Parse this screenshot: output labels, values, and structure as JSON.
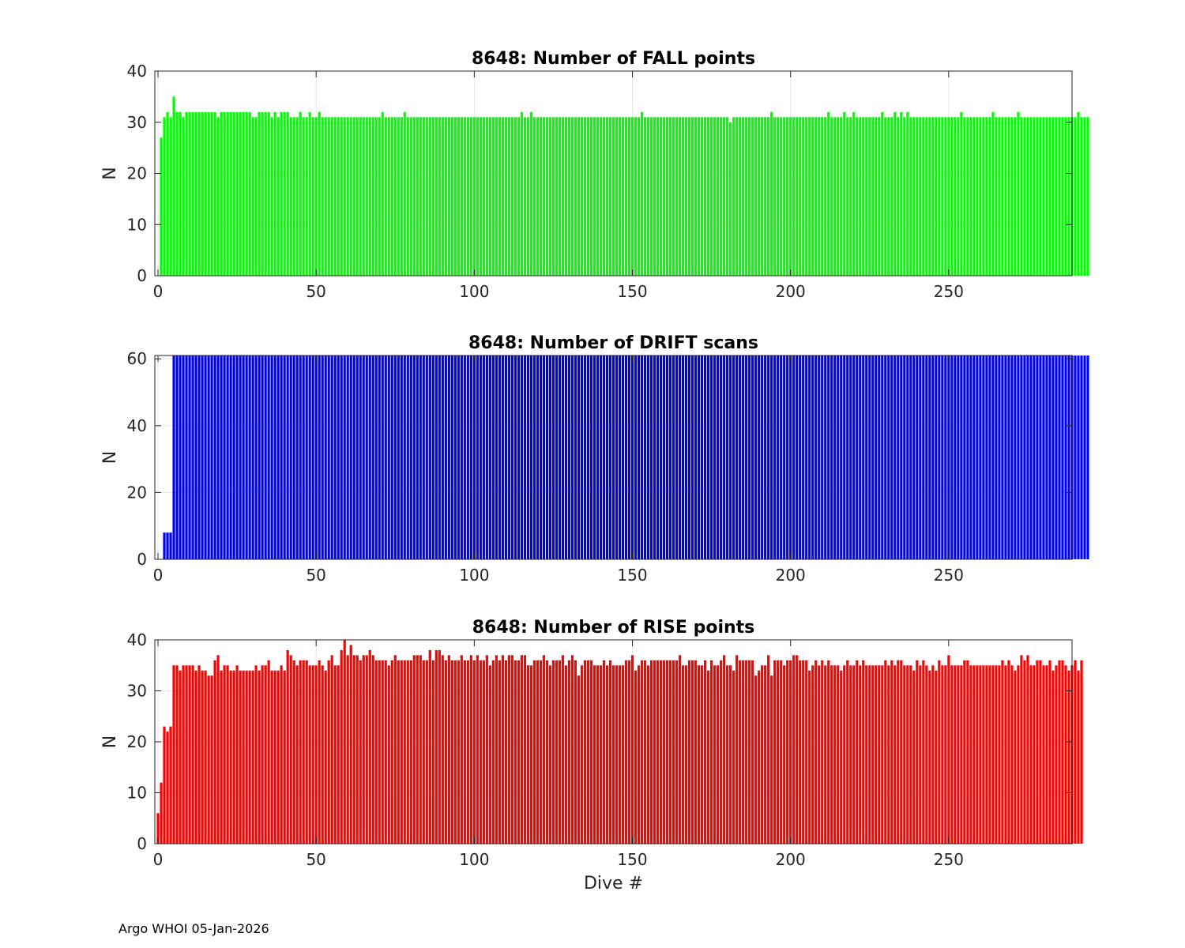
{
  "footer": {
    "text": "Argo WHOI 05-Jan-2026"
  },
  "chart_data": [
    {
      "type": "bar",
      "title": "8648: Number of FALL points",
      "xlabel": "",
      "ylabel": "N",
      "xlim": [
        -1,
        289
      ],
      "ylim": [
        0,
        40
      ],
      "xticks": [
        0,
        50,
        100,
        150,
        200,
        250
      ],
      "yticks": [
        0,
        10,
        20,
        30,
        40
      ],
      "grid": true,
      "color": "#00ff00",
      "series": [
        {
          "x_start": 1,
          "values": [
            27,
            31,
            32,
            31,
            35,
            32,
            32,
            31,
            32,
            32,
            32,
            32,
            32,
            32,
            32,
            32,
            32,
            32,
            31,
            32,
            32,
            32,
            32,
            32,
            32,
            32,
            32,
            32,
            32,
            31,
            31,
            32,
            32,
            32,
            32,
            31,
            32,
            31,
            32,
            32,
            32,
            31,
            31,
            31,
            32,
            31,
            31,
            32,
            31,
            31,
            32,
            31,
            31,
            31,
            31,
            31,
            31,
            31,
            31,
            31,
            31,
            31,
            31,
            31,
            31,
            31,
            31,
            31,
            31,
            31,
            32,
            31,
            31,
            31,
            31,
            31,
            31,
            32,
            31,
            31,
            31,
            31,
            31,
            31,
            31,
            31,
            31,
            31,
            31,
            31,
            31,
            31,
            31,
            31,
            31,
            31,
            31,
            31,
            31,
            31,
            31,
            31,
            31,
            31,
            31,
            31,
            31,
            31,
            31,
            31,
            31,
            31,
            31,
            31,
            32,
            31,
            31,
            32,
            31,
            31,
            31,
            31,
            31,
            31,
            31,
            31,
            31,
            31,
            31,
            31,
            31,
            31,
            31,
            31,
            31,
            31,
            31,
            31,
            31,
            31,
            31,
            31,
            31,
            31,
            31,
            31,
            31,
            31,
            31,
            31,
            31,
            31,
            32,
            31,
            31,
            31,
            31,
            31,
            31,
            31,
            31,
            31,
            31,
            31,
            31,
            31,
            31,
            31,
            31,
            31,
            31,
            31,
            31,
            31,
            31,
            31,
            31,
            31,
            31,
            31,
            30,
            31,
            31,
            31,
            31,
            31,
            31,
            31,
            31,
            31,
            31,
            31,
            31,
            32,
            31,
            31,
            31,
            31,
            31,
            31,
            31,
            31,
            31,
            31,
            31,
            31,
            31,
            31,
            31,
            31,
            31,
            32,
            31,
            31,
            31,
            31,
            32,
            31,
            31,
            32,
            31,
            31,
            31,
            31,
            31,
            31,
            31,
            31,
            32,
            31,
            31,
            31,
            32,
            31,
            32,
            31,
            32,
            31,
            31,
            31,
            31,
            31,
            31,
            31,
            31,
            31,
            31,
            31,
            31,
            31,
            31,
            31,
            31,
            32,
            31,
            31,
            31,
            31,
            31,
            31,
            31,
            31,
            31,
            32,
            31,
            31,
            31,
            31,
            31,
            31,
            31,
            32,
            31,
            31,
            31,
            31,
            31,
            31,
            31,
            31,
            31,
            31,
            31,
            31,
            31,
            31,
            31,
            31,
            31,
            31,
            32,
            31,
            31,
            31
          ]
        }
      ]
    },
    {
      "type": "bar",
      "title": "8648: Number of DRIFT scans",
      "xlabel": "",
      "ylabel": "N",
      "xlim": [
        -1,
        289
      ],
      "ylim": [
        0,
        61
      ],
      "xticks": [
        0,
        50,
        100,
        150,
        200,
        250
      ],
      "yticks": [
        0,
        20,
        40,
        60
      ],
      "grid": true,
      "color": "#0000ff",
      "series": [
        {
          "x_start": 1,
          "values": [
            0,
            8,
            8,
            8,
            61,
            61,
            61,
            61,
            61,
            61,
            61,
            61,
            61,
            61,
            61,
            61,
            61,
            61,
            61,
            61,
            61,
            61,
            61,
            61,
            61,
            61,
            61,
            61,
            61,
            61,
            61,
            61,
            61,
            61,
            61,
            61,
            61,
            61,
            61,
            61,
            61,
            61,
            61,
            61,
            61,
            61,
            61,
            61,
            61,
            61,
            61,
            61,
            61,
            61,
            61,
            61,
            61,
            61,
            61,
            61,
            61,
            61,
            61,
            61,
            61,
            61,
            61,
            61,
            61,
            61,
            61,
            61,
            61,
            61,
            61,
            61,
            61,
            61,
            61,
            61,
            61,
            61,
            61,
            61,
            61,
            61,
            61,
            61,
            61,
            61,
            61,
            61,
            61,
            61,
            61,
            61,
            61,
            61,
            61,
            61,
            61,
            61,
            61,
            61,
            61,
            61,
            61,
            61,
            61,
            61,
            61,
            61,
            61,
            61,
            61,
            61,
            61,
            61,
            61,
            61,
            61,
            61,
            61,
            61,
            61,
            61,
            61,
            61,
            61,
            61,
            61,
            61,
            61,
            61,
            61,
            61,
            61,
            61,
            61,
            61,
            61,
            61,
            61,
            61,
            61,
            61,
            61,
            61,
            61,
            61,
            61,
            61,
            61,
            61,
            61,
            61,
            61,
            61,
            61,
            61,
            61,
            61,
            61,
            61,
            61,
            61,
            61,
            61,
            61,
            61,
            61,
            61,
            61,
            61,
            61,
            61,
            61,
            61,
            61,
            61,
            61,
            61,
            61,
            61,
            61,
            61,
            61,
            61,
            61,
            61,
            61,
            61,
            61,
            61,
            61,
            61,
            61,
            61,
            61,
            61,
            61,
            61,
            61,
            61,
            61,
            61,
            61,
            61,
            61,
            61,
            61,
            61,
            61,
            61,
            61,
            61,
            61,
            61,
            61,
            61,
            61,
            61,
            61,
            61,
            61,
            61,
            61,
            61,
            61,
            61,
            61,
            61,
            61,
            61,
            61,
            61,
            61,
            61,
            61,
            61,
            61,
            61,
            61,
            61,
            61,
            61,
            61,
            61,
            61,
            61,
            61,
            61,
            61,
            61,
            61,
            61,
            61,
            61,
            61,
            61,
            61,
            61,
            61,
            61,
            61,
            61,
            61,
            61,
            61,
            61,
            61,
            61,
            61,
            61,
            61,
            61,
            61,
            61,
            61,
            61,
            61,
            61,
            61,
            61,
            61,
            61,
            61,
            61,
            61,
            61,
            61,
            61,
            61,
            61
          ]
        }
      ]
    },
    {
      "type": "bar",
      "title": "8648: Number of RISE points",
      "xlabel": "Dive #",
      "ylabel": "N",
      "xlim": [
        -1,
        289
      ],
      "ylim": [
        0,
        40
      ],
      "xticks": [
        0,
        50,
        100,
        150,
        200,
        250
      ],
      "yticks": [
        0,
        10,
        20,
        30,
        40
      ],
      "grid": true,
      "color": "#ff0000",
      "series": [
        {
          "x_start": 0,
          "values": [
            6,
            12,
            23,
            22,
            23,
            35,
            35,
            34,
            35,
            35,
            35,
            35,
            34,
            35,
            34,
            34,
            33,
            33,
            36,
            37,
            34,
            35,
            35,
            34,
            34,
            35,
            34,
            34,
            34,
            34,
            34,
            35,
            34,
            35,
            35,
            36,
            34,
            34,
            34,
            35,
            34,
            38,
            37,
            36,
            35,
            36,
            36,
            36,
            35,
            35,
            35,
            36,
            35,
            34,
            36,
            37,
            35,
            35,
            38,
            40,
            37,
            39,
            37,
            37,
            36,
            37,
            37,
            38,
            37,
            36,
            36,
            36,
            36,
            35,
            36,
            37,
            36,
            36,
            36,
            36,
            36,
            37,
            37,
            37,
            36,
            36,
            38,
            36,
            38,
            38,
            37,
            36,
            37,
            36,
            36,
            36,
            37,
            36,
            36,
            37,
            36,
            37,
            36,
            36,
            37,
            35,
            36,
            37,
            36,
            37,
            36,
            37,
            37,
            36,
            36,
            37,
            37,
            35,
            35,
            36,
            36,
            36,
            37,
            36,
            35,
            36,
            36,
            36,
            37,
            35,
            36,
            37,
            36,
            33,
            35,
            36,
            36,
            36,
            35,
            35,
            35,
            36,
            35,
            36,
            35,
            35,
            35,
            35,
            36,
            36,
            37,
            34,
            35,
            36,
            36,
            35,
            36,
            36,
            36,
            36,
            36,
            36,
            36,
            36,
            36,
            37,
            35,
            35,
            36,
            36,
            36,
            35,
            35,
            36,
            34,
            36,
            35,
            35,
            36,
            37,
            35,
            35,
            34,
            37,
            36,
            36,
            36,
            36,
            36,
            33,
            34,
            35,
            35,
            37,
            33,
            36,
            36,
            36,
            35,
            36,
            36,
            37,
            37,
            36,
            36,
            36,
            34,
            35,
            36,
            35,
            36,
            35,
            36,
            35,
            35,
            35,
            34,
            35,
            36,
            35,
            35,
            36,
            35,
            36,
            35,
            35,
            35,
            35,
            35,
            35,
            36,
            35,
            36,
            35,
            36,
            36,
            35,
            35,
            35,
            34,
            36,
            35,
            36,
            35,
            34,
            35,
            34,
            36,
            35,
            35,
            37,
            35,
            35,
            35,
            35,
            36,
            36,
            35,
            35,
            35,
            35,
            35,
            35,
            35,
            35,
            35,
            35,
            36,
            35,
            36,
            35,
            34,
            35,
            37,
            36,
            37,
            35,
            35,
            36,
            36,
            35,
            35,
            36,
            34,
            35,
            36,
            36,
            35,
            34,
            35,
            36,
            34,
            36
          ]
        }
      ]
    }
  ]
}
